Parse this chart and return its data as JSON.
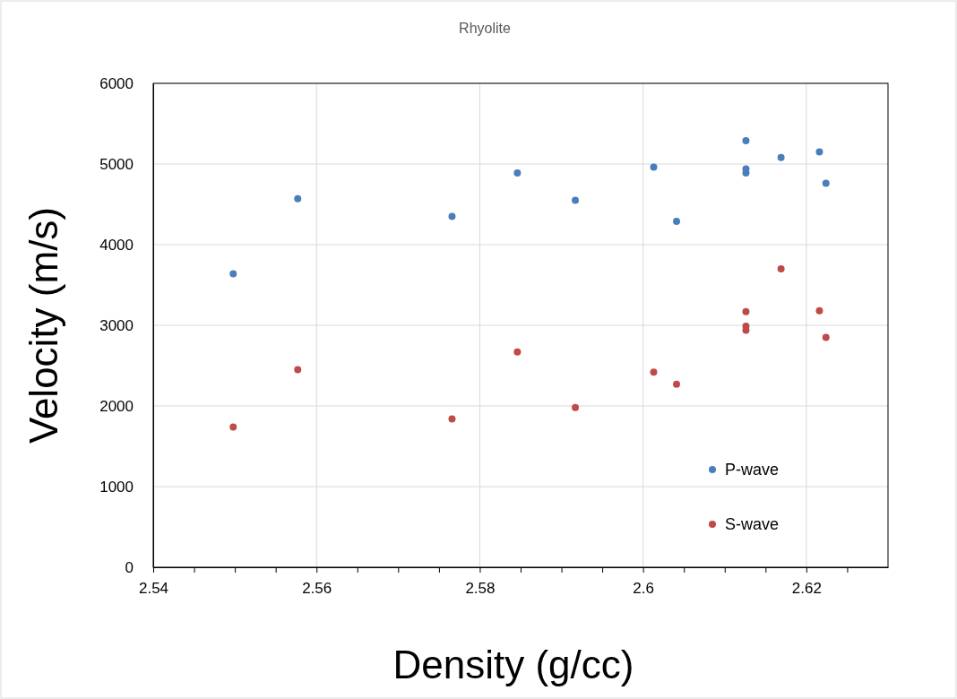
{
  "chart_data": {
    "type": "scatter",
    "title": "Rhyolite",
    "xlabel": "Density (g/cc)",
    "ylabel": "Velocity (m/s)",
    "xlim": [
      2.54,
      2.63
    ],
    "xticks": [
      2.54,
      {
        "value": 2.545,
        "label": null
      },
      2.56,
      {
        "value": 2.565,
        "label": null
      },
      2.58,
      {
        "value": 2.585,
        "label": null
      },
      2.6,
      {
        "value": 2.605,
        "label": null
      },
      2.62,
      {
        "value": 2.625,
        "label": null
      },
      {
        "value": 2.55,
        "label": null
      },
      {
        "value": 2.57,
        "label": null
      },
      {
        "value": 2.59,
        "label": null
      },
      {
        "value": 2.61,
        "label": null
      },
      {
        "value": 2.555,
        "label": null
      },
      {
        "value": 2.575,
        "label": null
      },
      {
        "value": 2.595,
        "label": null
      },
      {
        "value": 2.615,
        "label": null
      }
    ],
    "ylim": [
      0,
      6000
    ],
    "yticks": [
      0,
      1000,
      2000,
      3000,
      4000,
      5000,
      6000
    ],
    "grid": true,
    "legend": "bottom right",
    "marker": "circle",
    "series": [
      {
        "name": "P-wave",
        "color": "#4a7ebb",
        "x": [
          2.5498,
          2.5577,
          2.5766,
          2.5846,
          2.5917,
          2.6013,
          2.6041,
          2.6126,
          2.6126,
          2.6126,
          2.6169,
          2.6216,
          2.6224
        ],
        "values": [
          3640,
          4570,
          4350,
          4890,
          4550,
          4960,
          4290,
          5290,
          4940,
          4890,
          5080,
          5150,
          4760
        ]
      },
      {
        "name": "S-wave",
        "color": "#be4b48",
        "x": [
          2.5498,
          2.5577,
          2.5766,
          2.5846,
          2.5917,
          2.6013,
          2.6041,
          2.6126,
          2.6126,
          2.6126,
          2.6169,
          2.6216,
          2.6224
        ],
        "values": [
          1740,
          2450,
          1840,
          2670,
          1980,
          2420,
          2270,
          3170,
          2990,
          2940,
          3700,
          3180,
          2850
        ]
      }
    ]
  }
}
